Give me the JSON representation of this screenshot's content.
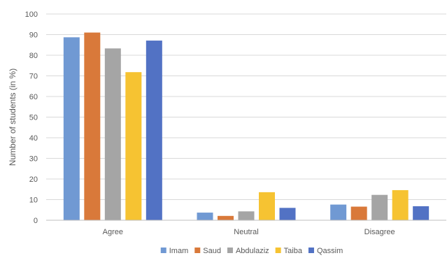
{
  "chart_data": {
    "type": "bar",
    "title": "",
    "xlabel": "",
    "ylabel": "Number of students (in %)",
    "ylim": [
      0,
      100
    ],
    "yticks": [
      0,
      10,
      20,
      30,
      40,
      50,
      60,
      70,
      80,
      90,
      100
    ],
    "grid": true,
    "legend_position": "bottom",
    "categories": [
      "Agree",
      "Neutral",
      "Disagree"
    ],
    "series": [
      {
        "name": "Imam",
        "color": "#7099D3",
        "values": [
          88.7,
          3.7,
          7.6
        ]
      },
      {
        "name": "Saud",
        "color": "#D9793A",
        "values": [
          91.0,
          2.1,
          6.6
        ]
      },
      {
        "name": "Abdulaziz",
        "color": "#A5A5A5",
        "values": [
          83.3,
          4.3,
          12.3
        ]
      },
      {
        "name": "Taiba",
        "color": "#F6C332",
        "values": [
          71.8,
          13.6,
          14.6
        ]
      },
      {
        "name": "Qassim",
        "color": "#5272C4",
        "values": [
          87.1,
          6.0,
          6.8
        ]
      }
    ]
  }
}
